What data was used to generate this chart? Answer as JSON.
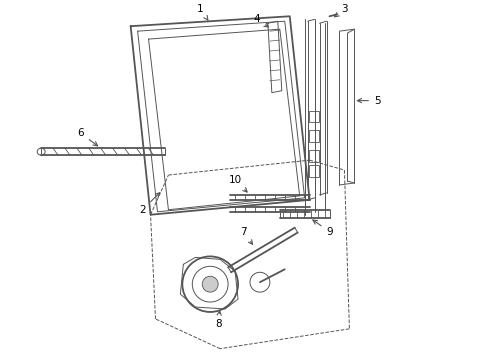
{
  "background_color": "#ffffff",
  "line_color": "#555555",
  "label_color": "#000000",
  "lw_main": 1.3,
  "lw_thin": 0.7,
  "lw_med": 1.0,
  "label_fontsize": 7.5
}
